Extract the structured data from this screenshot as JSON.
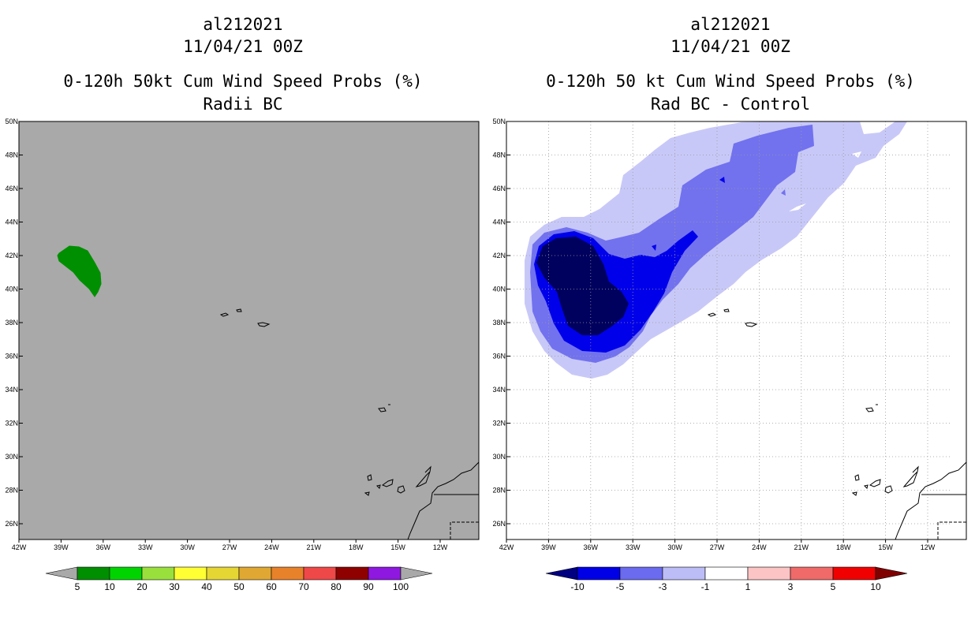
{
  "chart_data": [
    {
      "type": "map",
      "title_lines": [
        "al212021",
        "11/04/21 00Z",
        "0-120h 50kt Cum Wind Speed Probs (%)",
        "Radii BC"
      ],
      "lon_ticks": [
        "42W",
        "39W",
        "36W",
        "33W",
        "30W",
        "27W",
        "24W",
        "21W",
        "18W",
        "15W",
        "12W"
      ],
      "lat_ticks": [
        "50N",
        "48N",
        "46N",
        "44N",
        "42N",
        "40N",
        "38N",
        "36N",
        "34N",
        "32N",
        "30N",
        "28N",
        "26N"
      ],
      "background": "#a9a9a9",
      "grid": false,
      "colorbar": {
        "labels": [
          "5",
          "10",
          "20",
          "30",
          "40",
          "50",
          "60",
          "70",
          "80",
          "90",
          "100"
        ],
        "colors": [
          "#008f00",
          "#00d400",
          "#99e03c",
          "#ffff33",
          "#e6d633",
          "#e0a832",
          "#e8822a",
          "#ef4848",
          "#8f0000",
          "#8f18e0"
        ],
        "end_colors": [
          "#a9a9a9",
          "#a9a9a9"
        ]
      },
      "fields": [
        {
          "label": "5-10%",
          "color": "#008f00"
        }
      ]
    },
    {
      "type": "map",
      "title_lines": [
        "al212021",
        "11/04/21 00Z",
        "0-120h 50 kt Cum Wind Speed Probs (%)",
        "Rad BC - Control"
      ],
      "lon_ticks": [
        "42W",
        "39W",
        "36W",
        "33W",
        "30W",
        "27W",
        "24W",
        "21W",
        "18W",
        "15W",
        "12W"
      ],
      "lat_ticks": [
        "50N",
        "48N",
        "46N",
        "44N",
        "42N",
        "40N",
        "38N",
        "36N",
        "34N",
        "32N",
        "30N",
        "28N",
        "26N"
      ],
      "background": "#ffffff",
      "grid": true,
      "colorbar": {
        "labels": [
          "-10",
          "-5",
          "-3",
          "-1",
          "1",
          "3",
          "5",
          "10"
        ],
        "colors": [
          "#0000e6",
          "#6b6bf0",
          "#bcbcf7",
          "#ffffff",
          "#fcc4c4",
          "#f06a6a",
          "#f00000"
        ],
        "end_colors": [
          "#000080",
          "#800000"
        ]
      },
      "fields": [
        {
          "label": "-1 to -3",
          "color": "#c8c8f8"
        },
        {
          "label": "-3 to -5",
          "color": "#7272ef"
        },
        {
          "label": "-5 to -10",
          "color": "#0000ea"
        },
        {
          "label": "< -10",
          "color": "#00005e"
        }
      ]
    }
  ]
}
